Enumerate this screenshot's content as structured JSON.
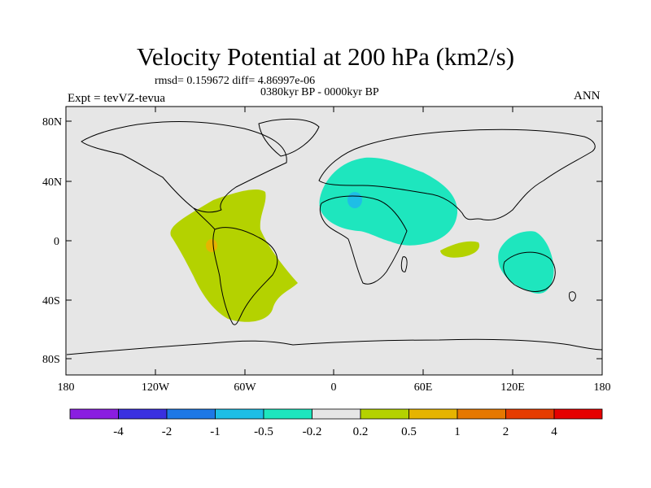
{
  "header": {
    "title": "Velocity Potential at 200 hPa (km2/s)",
    "stats": "rmsd= 0.159672 diff= 4.86997e-06",
    "period": "0380kyr BP - 0000kyr BP",
    "experiment": "Expt = tevVZ-tevua",
    "season": "ANN"
  },
  "axes": {
    "y_ticks": [
      "80N",
      "40N",
      "0",
      "40S",
      "80S"
    ],
    "x_ticks": [
      "180",
      "120W",
      "60W",
      "0",
      "60E",
      "120E",
      "180"
    ]
  },
  "colorbar": {
    "colors": [
      "#8a1ee0",
      "#3a30e0",
      "#1e78e6",
      "#1ebee6",
      "#1ee6be",
      "#e6e6e6",
      "#b4d200",
      "#e6b400",
      "#e67800",
      "#e63c00",
      "#e60000"
    ],
    "labels": [
      "-4",
      "-2",
      "-1",
      "-0.5",
      "-0.2",
      "0.2",
      "0.5",
      "1",
      "2",
      "4"
    ]
  },
  "map": {
    "background": "#e6e6e6",
    "positive_color": "#b4d200",
    "negative_color": "#1ee6be",
    "strong_negative_color": "#1ebee6",
    "max_color": "#e6b400"
  }
}
